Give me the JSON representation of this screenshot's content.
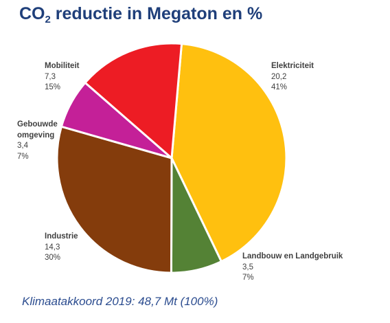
{
  "title": {
    "main": "CO",
    "sub": "2",
    "rest": " reductie in Megaton en %"
  },
  "chart_data": {
    "type": "pie",
    "title": "CO2 reductie in Megaton en %",
    "slices": [
      {
        "name": "Elektriciteit",
        "value": 20.2,
        "value_label": "20,2",
        "percent": "41%",
        "color": "#ffc00f"
      },
      {
        "name": "Landbouw en Landgebruik",
        "value": 3.5,
        "value_label": "3,5",
        "percent": "7%",
        "color": "#548235"
      },
      {
        "name": "Industrie",
        "value": 14.3,
        "value_label": "14,3",
        "percent": "30%",
        "color": "#843c0c"
      },
      {
        "name": "Gebouwde\nomgeving",
        "value": 3.4,
        "value_label": "3,4",
        "percent": "7%",
        "color": "#c42098"
      },
      {
        "name": "Mobiliteit",
        "value": 7.3,
        "value_label": "7,3",
        "percent": "15%",
        "color": "#ed1c24"
      }
    ]
  },
  "footer": "Klimaatakkoord 2019: 48,7 Mt (100%)"
}
